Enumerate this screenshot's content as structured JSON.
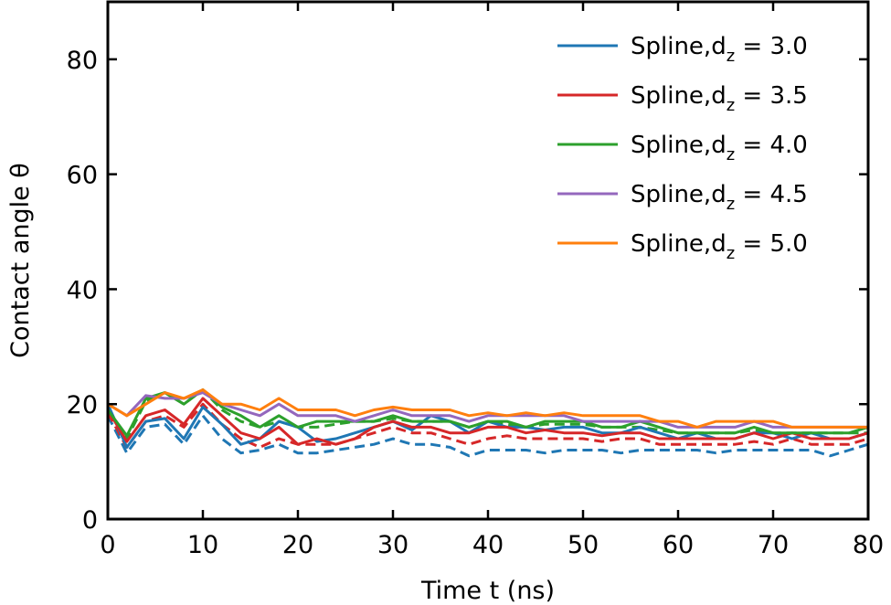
{
  "chart_data": {
    "type": "line",
    "xlabel": "Time t (ns)",
    "ylabel": "Contact angle θ",
    "xlim": [
      0,
      80
    ],
    "ylim": [
      0,
      90
    ],
    "xticks": [
      "0",
      "10",
      "20",
      "30",
      "40",
      "50",
      "60",
      "70",
      "80"
    ],
    "yticks": [
      "0",
      "20",
      "40",
      "60",
      "80"
    ],
    "grid": false,
    "legend_position": "top-right",
    "series": [
      {
        "name": "Spline,d_z = 3.0",
        "color": "#1f77b4",
        "style": "solid",
        "x": [
          0,
          2,
          4,
          6,
          8,
          10,
          12,
          14,
          16,
          18,
          20,
          22,
          24,
          26,
          28,
          30,
          32,
          34,
          36,
          38,
          40,
          42,
          44,
          46,
          48,
          50,
          52,
          54,
          56,
          58,
          60,
          62,
          64,
          66,
          68,
          70,
          72,
          74,
          76,
          78,
          80
        ],
        "y": [
          20,
          12.5,
          17,
          17.5,
          14,
          19.5,
          16.5,
          13,
          14,
          17,
          16,
          13.5,
          14,
          15,
          16,
          17,
          15.5,
          18,
          17,
          15,
          17,
          16,
          16,
          15.5,
          16,
          16,
          15,
          15,
          16,
          15,
          14,
          15,
          14,
          14,
          15,
          15,
          14,
          15,
          14,
          14,
          15
        ]
      },
      {
        "name": "Spline,d_z = 3.5",
        "color": "#d62728",
        "style": "solid",
        "x": [
          0,
          2,
          4,
          6,
          8,
          10,
          12,
          14,
          16,
          18,
          20,
          22,
          24,
          26,
          28,
          30,
          32,
          34,
          36,
          38,
          40,
          42,
          44,
          46,
          48,
          50,
          52,
          54,
          56,
          58,
          60,
          62,
          64,
          66,
          68,
          70,
          72,
          74,
          76,
          78,
          80
        ],
        "y": [
          19,
          13.5,
          18,
          19,
          16.5,
          21,
          18,
          15,
          14,
          16,
          13,
          14,
          13,
          14,
          16,
          17,
          16,
          16,
          15,
          15,
          16,
          16,
          15,
          15.5,
          15,
          15,
          14.5,
          15,
          15,
          14,
          14,
          14,
          14,
          14,
          15,
          14,
          15,
          14,
          14,
          14,
          15
        ]
      },
      {
        "name": "Spline,d_z = 4.0",
        "color": "#2ca02c",
        "style": "solid",
        "x": [
          0,
          2,
          4,
          6,
          8,
          10,
          12,
          14,
          16,
          18,
          20,
          22,
          24,
          26,
          28,
          30,
          32,
          34,
          36,
          38,
          40,
          42,
          44,
          46,
          48,
          50,
          52,
          54,
          56,
          58,
          60,
          62,
          64,
          66,
          68,
          70,
          72,
          74,
          76,
          78,
          80
        ],
        "y": [
          19,
          14.5,
          21,
          22,
          20,
          22.5,
          19.5,
          18,
          16,
          18,
          16,
          17,
          17,
          17,
          17,
          18,
          17,
          17,
          17,
          16,
          17,
          17,
          16,
          17,
          17,
          17,
          16,
          16,
          17,
          16,
          15,
          15,
          15,
          15,
          16,
          15,
          15,
          15,
          15,
          15,
          16
        ]
      },
      {
        "name": "Spline,d_z = 4.5",
        "color": "#9467bd",
        "style": "solid",
        "x": [
          0,
          2,
          4,
          6,
          8,
          10,
          12,
          14,
          16,
          18,
          20,
          22,
          24,
          26,
          28,
          30,
          32,
          34,
          36,
          38,
          40,
          42,
          44,
          46,
          48,
          50,
          52,
          54,
          56,
          58,
          60,
          62,
          64,
          66,
          68,
          70,
          72,
          74,
          76,
          78,
          80
        ],
        "y": [
          20,
          18,
          21.5,
          21,
          21,
          22,
          20,
          19,
          18,
          20,
          18,
          18,
          18,
          17,
          18,
          19,
          18,
          18,
          18,
          17,
          18,
          18,
          18,
          18,
          18,
          17,
          17,
          17,
          17,
          17,
          16,
          16,
          16,
          16,
          17,
          16,
          16,
          16,
          16,
          16,
          16
        ]
      },
      {
        "name": "Spline,d_z = 5.0",
        "color": "#ff7f0e",
        "style": "solid",
        "x": [
          0,
          2,
          4,
          6,
          8,
          10,
          12,
          14,
          16,
          18,
          20,
          22,
          24,
          26,
          28,
          30,
          32,
          34,
          36,
          38,
          40,
          42,
          44,
          46,
          48,
          50,
          52,
          54,
          56,
          58,
          60,
          62,
          64,
          66,
          68,
          70,
          72,
          74,
          76,
          78,
          80
        ],
        "y": [
          20,
          18,
          20,
          22,
          21,
          22.5,
          20,
          20,
          19,
          21,
          19,
          19,
          19,
          18,
          19,
          19.5,
          19,
          19,
          19,
          18,
          18.5,
          18,
          18.5,
          18,
          18.5,
          18,
          18,
          18,
          18,
          17,
          17,
          16,
          17,
          17,
          17,
          17,
          16,
          16,
          16,
          16,
          16
        ]
      },
      {
        "name": "",
        "color": "#1f77b4",
        "style": "dashed",
        "x": [
          0,
          2,
          4,
          6,
          8,
          10,
          12,
          14,
          16,
          18,
          20,
          22,
          24,
          26,
          28,
          30,
          32,
          34,
          36,
          38,
          40,
          42,
          44,
          46,
          48,
          50,
          52,
          54,
          56,
          58,
          60,
          62,
          64,
          66,
          68,
          70,
          72,
          74,
          76,
          78,
          80
        ],
        "y": [
          18,
          11.5,
          16,
          16.5,
          13,
          18,
          14,
          11.5,
          12,
          13,
          11.5,
          11.5,
          12,
          12.5,
          13,
          14,
          13,
          13,
          12.5,
          11,
          12,
          12,
          12,
          11.5,
          12,
          12,
          12,
          11.5,
          12,
          12,
          12,
          12,
          11.5,
          12,
          12,
          12,
          12,
          12,
          11,
          12,
          13
        ]
      },
      {
        "name": "",
        "color": "#d62728",
        "style": "dashed",
        "x": [
          0,
          2,
          4,
          6,
          8,
          10,
          12,
          14,
          16,
          18,
          20,
          22,
          24,
          26,
          28,
          30,
          32,
          34,
          36,
          38,
          40,
          42,
          44,
          46,
          48,
          50,
          52,
          54,
          56,
          58,
          60,
          62,
          64,
          66,
          68,
          70,
          72,
          74,
          76,
          78,
          80
        ],
        "y": [
          18.5,
          12.5,
          17,
          18,
          16,
          20,
          16.5,
          14,
          12.5,
          14,
          13,
          13,
          13,
          14,
          15,
          16,
          15,
          15,
          14,
          13,
          14,
          14.5,
          14,
          14,
          14,
          14,
          13.5,
          14,
          14,
          13,
          13,
          13,
          13,
          13,
          13.5,
          13,
          14,
          13,
          13,
          13,
          14
        ]
      },
      {
        "name": "",
        "color": "#2ca02c",
        "style": "dashed",
        "x": [
          0,
          2,
          4,
          6,
          8,
          10,
          12,
          14,
          16,
          18,
          20,
          22,
          24,
          26,
          28,
          30,
          32,
          34,
          36,
          38,
          40,
          42,
          44,
          46,
          48,
          50,
          52,
          54,
          56,
          58,
          60,
          62,
          64,
          66,
          68,
          70,
          72,
          74,
          76,
          78,
          80
        ],
        "y": [
          19,
          14,
          20.5,
          22,
          20,
          22.5,
          19,
          17,
          16,
          17,
          16,
          16,
          16.5,
          17,
          17,
          17.5,
          17,
          17,
          17,
          16,
          17,
          16.5,
          16,
          16.5,
          16.5,
          16.5,
          16,
          16,
          16,
          15.5,
          15,
          15,
          15,
          15,
          15.5,
          15,
          15,
          15,
          15,
          15,
          15
        ]
      }
    ]
  }
}
